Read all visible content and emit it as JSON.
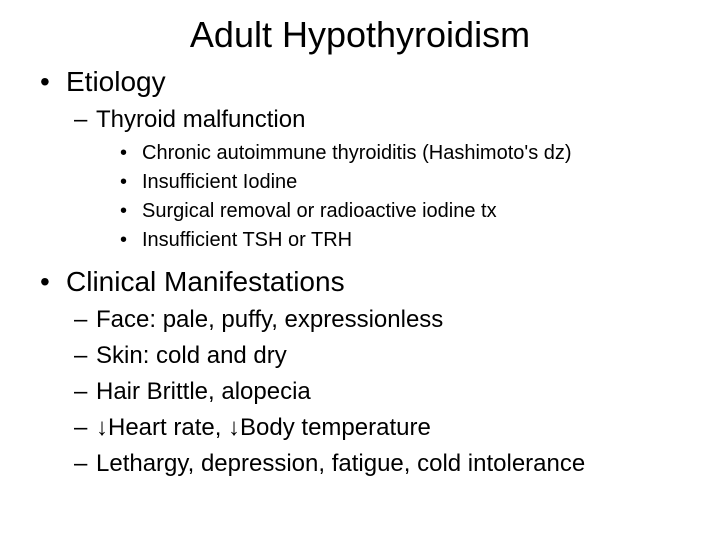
{
  "title": "Adult Hypothyroidism",
  "sections": {
    "etiology": {
      "heading": "Etiology",
      "sub": {
        "heading": "Thyroid malfunction",
        "items": [
          "Chronic autoimmune thyroiditis (Hashimoto's dz)",
          "Insufficient Iodine",
          "Surgical removal or radioactive iodine tx",
          "Insufficient TSH or TRH"
        ]
      }
    },
    "clinical": {
      "heading": "Clinical Manifestations",
      "items": [
        "Face: pale, puffy, expressionless",
        "Skin: cold and dry",
        "Hair Brittle, alopecia",
        "↓Heart rate, ↓Body temperature",
        "Lethargy, depression, fatigue, cold intolerance"
      ]
    }
  },
  "styling": {
    "background_color": "#ffffff",
    "text_color": "#000000",
    "font_family": "Arial",
    "title_fontsize": 36,
    "level1_fontsize": 28,
    "level2_fontsize": 24,
    "level3_fontsize": 20,
    "bullet_level1": "•",
    "bullet_level2": "–",
    "bullet_level3": "•"
  }
}
